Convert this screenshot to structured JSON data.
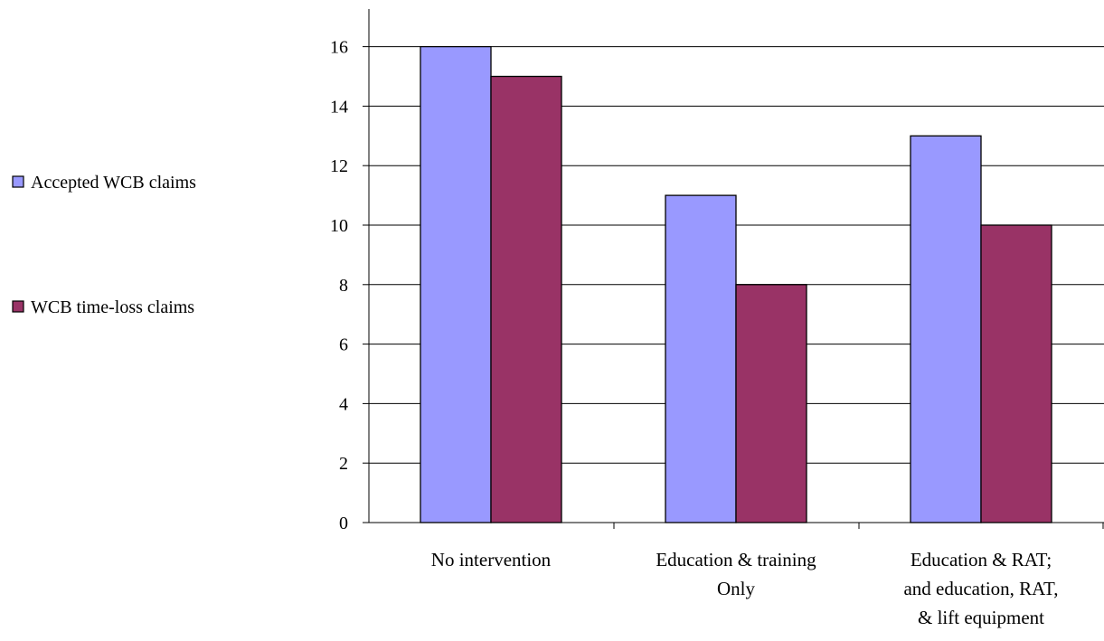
{
  "chart_data": {
    "type": "bar",
    "title": "",
    "xlabel": "",
    "ylabel": "",
    "categories": [
      [
        "No intervention"
      ],
      [
        "Education & training",
        "Only"
      ],
      [
        "Education & RAT;",
        "and education, RAT,",
        "& lift equipment"
      ]
    ],
    "series": [
      {
        "name": "Accepted WCB claims",
        "values": [
          16,
          11,
          13
        ],
        "color": "#9999ff"
      },
      {
        "name": "WCB time-loss claims",
        "values": [
          15,
          8,
          10
        ],
        "color": "#993366"
      }
    ],
    "ylim": [
      0,
      17
    ],
    "yticks": [
      0,
      2,
      4,
      6,
      8,
      10,
      12,
      14,
      16
    ],
    "grid": true,
    "legend_position": "left"
  }
}
